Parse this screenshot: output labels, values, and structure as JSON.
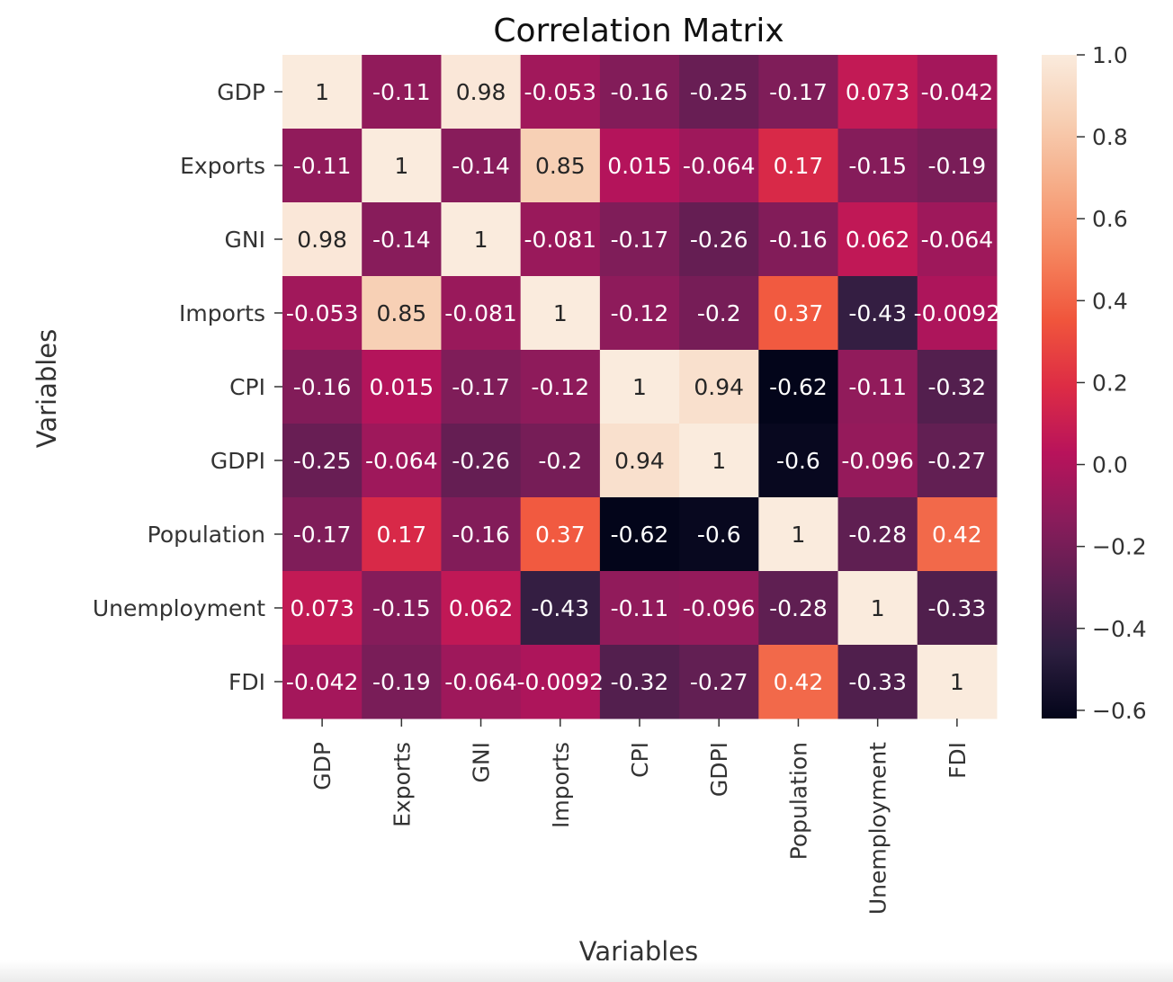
{
  "chart_data": {
    "type": "heatmap",
    "title": "Correlation Matrix",
    "xlabel": "Variables",
    "ylabel": "Variables",
    "categories": [
      "GDP",
      "Exports",
      "GNI",
      "Imports",
      "CPI",
      "GDPI",
      "Population",
      "Unemployment",
      "FDI"
    ],
    "matrix": [
      [
        1,
        -0.11,
        0.98,
        -0.053,
        -0.16,
        -0.25,
        -0.17,
        0.073,
        -0.042
      ],
      [
        -0.11,
        1,
        -0.14,
        0.85,
        0.015,
        -0.064,
        0.17,
        -0.15,
        -0.19
      ],
      [
        0.98,
        -0.14,
        1,
        -0.081,
        -0.17,
        -0.26,
        -0.16,
        0.062,
        -0.064
      ],
      [
        -0.053,
        0.85,
        -0.081,
        1,
        -0.12,
        -0.2,
        0.37,
        -0.43,
        -0.0092
      ],
      [
        -0.16,
        0.015,
        -0.17,
        -0.12,
        1,
        0.94,
        -0.62,
        -0.11,
        -0.32
      ],
      [
        -0.25,
        -0.064,
        -0.26,
        -0.2,
        0.94,
        1,
        -0.6,
        -0.096,
        -0.27
      ],
      [
        -0.17,
        0.17,
        -0.16,
        0.37,
        -0.62,
        -0.6,
        1,
        -0.28,
        0.42
      ],
      [
        0.073,
        -0.15,
        0.062,
        -0.43,
        -0.11,
        -0.096,
        -0.28,
        1,
        -0.33
      ],
      [
        -0.042,
        -0.19,
        -0.064,
        -0.0092,
        -0.32,
        -0.27,
        0.42,
        -0.33,
        1
      ]
    ],
    "cell_labels": [
      [
        "1",
        "-0.11",
        "0.98",
        "-0.053",
        "-0.16",
        "-0.25",
        "-0.17",
        "0.073",
        "-0.042"
      ],
      [
        "-0.11",
        "1",
        "-0.14",
        "0.85",
        "0.015",
        "-0.064",
        "0.17",
        "-0.15",
        "-0.19"
      ],
      [
        "0.98",
        "-0.14",
        "1",
        "-0.081",
        "-0.17",
        "-0.26",
        "-0.16",
        "0.062",
        "-0.064"
      ],
      [
        "-0.053",
        "0.85",
        "-0.081",
        "1",
        "-0.12",
        "-0.2",
        "0.37",
        "-0.43",
        "-0.0092"
      ],
      [
        "-0.16",
        "0.015",
        "-0.17",
        "-0.12",
        "1",
        "0.94",
        "-0.62",
        "-0.11",
        "-0.32"
      ],
      [
        "-0.25",
        "-0.064",
        "-0.26",
        "-0.2",
        "0.94",
        "1",
        "-0.6",
        "-0.096",
        "-0.27"
      ],
      [
        "-0.17",
        "0.17",
        "-0.16",
        "0.37",
        "-0.62",
        "-0.6",
        "1",
        "-0.28",
        "0.42"
      ],
      [
        "0.073",
        "-0.15",
        "0.062",
        "-0.43",
        "-0.11",
        "-0.096",
        "-0.28",
        "1",
        "-0.33"
      ],
      [
        "-0.042",
        "-0.19",
        "-0.064",
        "-0.0092",
        "-0.32",
        "-0.27",
        "0.42",
        "-0.33",
        "1"
      ]
    ],
    "colorscale": "rocket",
    "vmin": -0.62,
    "vmax": 1.0,
    "colorbar": {
      "ticks": [
        1.0,
        0.8,
        0.6,
        0.4,
        0.2,
        0.0,
        -0.2,
        -0.4,
        -0.6
      ],
      "tick_labels": [
        "1.0",
        "0.8",
        "0.6",
        "0.4",
        "0.2",
        "0.0",
        "−0.2",
        "−0.4",
        "−0.6"
      ]
    },
    "legend": "colorbar-right",
    "grid": false
  }
}
